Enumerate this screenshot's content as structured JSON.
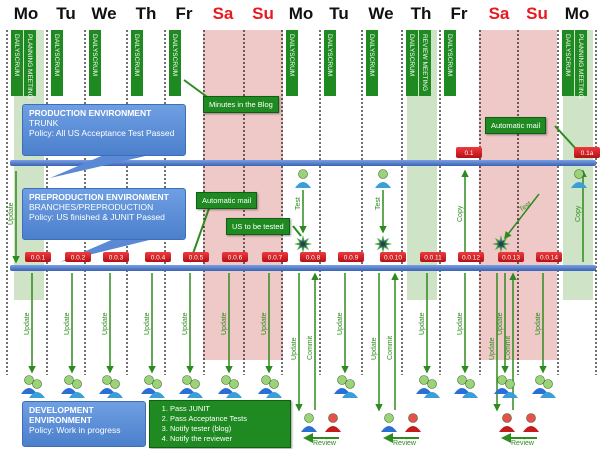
{
  "days": [
    {
      "label": "Mo",
      "weekend": false
    },
    {
      "label": "Tu",
      "weekend": false
    },
    {
      "label": "We",
      "weekend": false
    },
    {
      "label": "Th",
      "weekend": false
    },
    {
      "label": "Fr",
      "weekend": false
    },
    {
      "label": "Sa",
      "weekend": true
    },
    {
      "label": "Su",
      "weekend": true
    },
    {
      "label": "Mo",
      "weekend": false
    },
    {
      "label": "Tu",
      "weekend": false
    },
    {
      "label": "We",
      "weekend": false
    },
    {
      "label": "Th",
      "weekend": false
    },
    {
      "label": "Fr",
      "weekend": false
    },
    {
      "label": "Sa",
      "weekend": true
    },
    {
      "label": "Su",
      "weekend": true
    },
    {
      "label": "Mo",
      "weekend": false
    }
  ],
  "meetings": [
    {
      "day": 0,
      "label": "DAILYSCRUM"
    },
    {
      "day": 0,
      "label": "PLANNING MEETING"
    },
    {
      "day": 1,
      "label": "DAILYSCRUM"
    },
    {
      "day": 2,
      "label": "DAILYSCRUM"
    },
    {
      "day": 3,
      "label": "DAILYSCRUM"
    },
    {
      "day": 4,
      "label": "DAILYSCRUM"
    },
    {
      "day": 7,
      "label": "DAILYSCRUM"
    },
    {
      "day": 8,
      "label": "DAILYSCRUM"
    },
    {
      "day": 9,
      "label": "DAILYSCRUM"
    },
    {
      "day": 10,
      "label": "DAILYSCRUM"
    },
    {
      "day": 10,
      "label": "REVIEW MEETING"
    },
    {
      "day": 11,
      "label": "DAILYSCRUM"
    },
    {
      "day": 14,
      "label": "DAILYSCRUM"
    },
    {
      "day": 14,
      "label": "PLANNING MEETING"
    }
  ],
  "environments": {
    "production": {
      "title": "PRODUCTION ENVIRONMENT",
      "branch": "TRUNK",
      "policy": "Policy: All  US Acceptance Test Passed"
    },
    "preproduction": {
      "title": "PREPRODUCTION ENVIRONMENT",
      "branch": "BRANCHES/PREPRODUCTION",
      "policy": "Policy: US finished & JUNIT Passed"
    },
    "development": {
      "title": "DEVELOPMENT ENVIRONMENT",
      "policy": "Policy: Work in progress"
    }
  },
  "notes": {
    "minutes_blog": "Minutes in the Blog",
    "auto_mail_pre": "Automatic mail",
    "auto_mail_prod": "Automatic mail",
    "us_to_be_tested": "US to be tested",
    "checklist": [
      "Pass JUNIT",
      "Pass Acceptance Tests",
      "Notify tester (blog)",
      "Notify the reviewer"
    ]
  },
  "production_tags": [
    "0.1",
    "0.1a"
  ],
  "preproduction_tags": [
    "0.0.1",
    "0.0.2",
    "0.0.3",
    "0.0.4",
    "0.0.5",
    "0.0.6",
    "0.0.7",
    "0.0.8",
    "0.0.9",
    "0.0.10",
    "0.0.11",
    "0.0.12",
    "0.0.13",
    "0.0.14"
  ],
  "arrow_labels": {
    "update": "Update",
    "commit": "Commit",
    "review": "Review",
    "test": "Test",
    "copy": "Copy"
  },
  "colors": {
    "line": "#4a74c9",
    "tag": "#d9171c",
    "meeting": "#1f8a21",
    "weekend_band": "#efc9c8",
    "review_band": "#cfe3c6",
    "arrow": "#2e8b1f"
  }
}
